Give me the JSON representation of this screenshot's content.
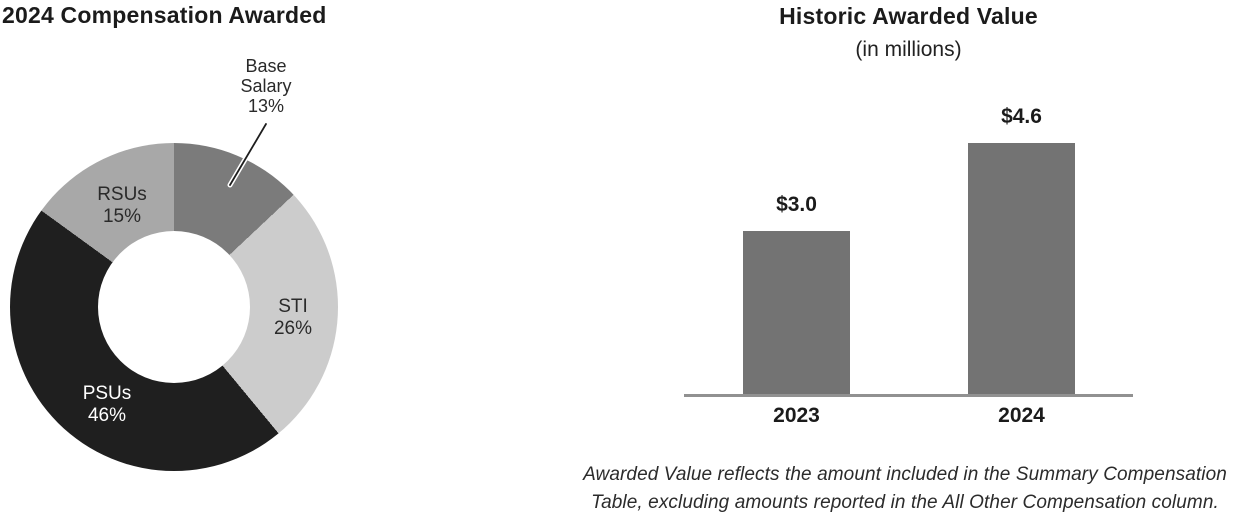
{
  "chart_data": [
    {
      "type": "pie",
      "variant": "donut",
      "title": "2024 Compensation Awarded",
      "direction": "clockwise",
      "start_angle_deg": 0,
      "inner_radius_ratio": 0.46,
      "slices": [
        {
          "label": "Base Salary",
          "pct": 13,
          "pct_text": "13%",
          "color": "#7b7b7b"
        },
        {
          "label": "STI",
          "pct": 26,
          "pct_text": "26%",
          "color": "#cccccc"
        },
        {
          "label": "PSUs",
          "pct": 46,
          "pct_text": "46%",
          "color": "#1f1f1f"
        },
        {
          "label": "RSUs",
          "pct": 15,
          "pct_text": "15%",
          "color": "#a8a8a8"
        }
      ]
    },
    {
      "type": "bar",
      "title": "Historic Awarded Value",
      "subtitle": "(in millions)",
      "categories": [
        "2023",
        "2024"
      ],
      "values": [
        3.0,
        4.6
      ],
      "data_labels": [
        "$3.0",
        "$4.6"
      ],
      "ylim": [
        0,
        4.6
      ],
      "bar_color": "#737373",
      "axis_color": "#919191",
      "grid": false,
      "legend": false,
      "footnote_lines": [
        "Awarded Value reflects the amount included in the Summary Compensation",
        "Table, excluding amounts reported in the All Other Compensation column."
      ]
    }
  ]
}
